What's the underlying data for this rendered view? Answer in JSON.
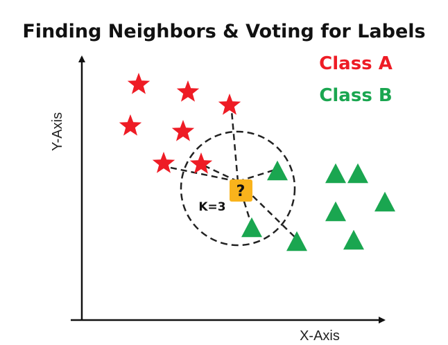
{
  "title": "Finding Neighbors & Voting for Labels",
  "legend": [
    {
      "label": "Class A",
      "color": "#ee1c25"
    },
    {
      "label": "Class B",
      "color": "#1aa650"
    }
  ],
  "axes": {
    "x_label": "X-Axis",
    "y_label": "Y-Axis"
  },
  "k_label": "K=3",
  "query_label": "?",
  "colors": {
    "class_a": "#ee1c25",
    "class_b": "#1aa650",
    "query_fill": "#f9b31c",
    "axis": "#111111",
    "dashed": "#222222"
  },
  "icons": {
    "class_a_marker": "star-icon",
    "class_b_marker": "triangle-icon",
    "query_marker": "question-square-icon"
  }
}
